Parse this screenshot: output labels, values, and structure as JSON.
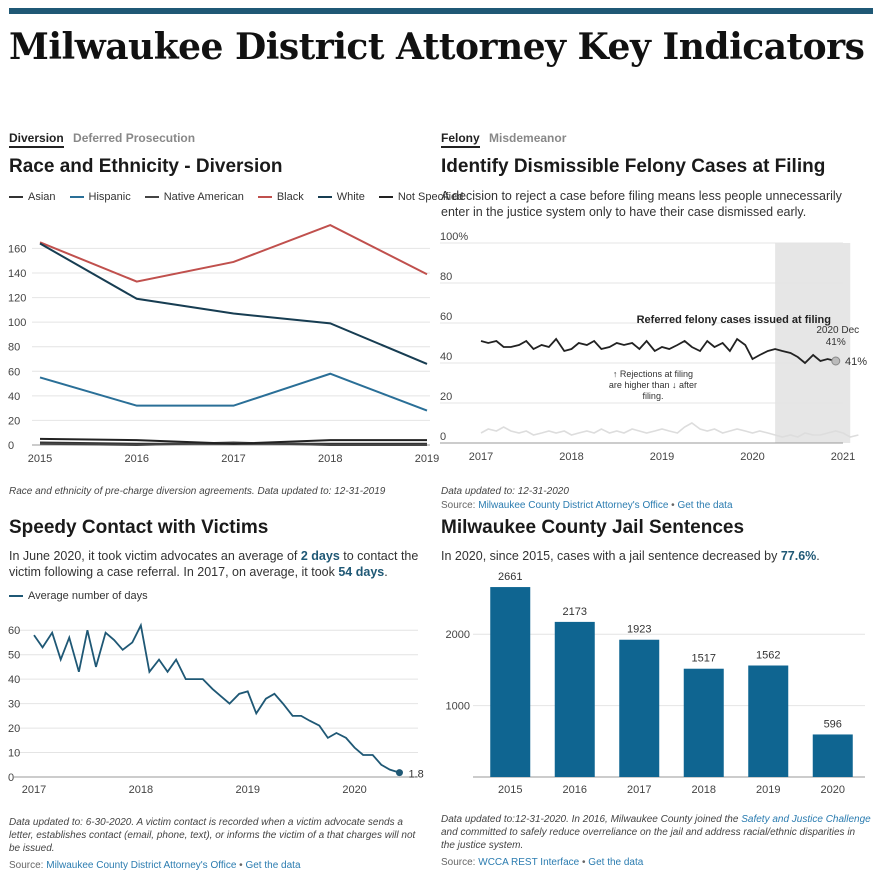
{
  "page": {
    "title": "Milwaukee District Attorney Key Indicators"
  },
  "diversion": {
    "tabs": [
      "Diversion",
      "Deferred Prosecution"
    ],
    "title": "Race and Ethnicity - Diversion",
    "note": "Race and ethnicity of pre-charge diversion agreements. Data updated to: 12-31-2019"
  },
  "felony": {
    "tabs": [
      "Felony",
      "Misdemeanor"
    ],
    "title": "Identify Dismissible Felony Cases at Filing",
    "description": "A decision to reject a case before filing means less people unnecessarily enter in the justice system only to have their case dismissed early.",
    "note": "Data updated to: 12-31-2020",
    "source_label": "Source:",
    "source_link": "Milwaukee County District Attorney's Office",
    "sep": "•",
    "get_data": "Get the data"
  },
  "contact": {
    "title": "Speedy Contact with Victims",
    "desc_1": "In June 2020, it took victim advocates an average of",
    "desc_b1": "2 days",
    "desc_2": "to contact the victim following a case referral. In 2017, on average, it took",
    "desc_b2": "54 days",
    "desc_3": ".",
    "note": "Data updated to: 6-30-2020. A victim contact is recorded when a victim advocate sends a letter, establishes contact (email, phone, text), or informs the victim of a that charges will not be issued.",
    "source_label": "Source:",
    "source_link": "Milwaukee County District Attorney's Office",
    "sep": "•",
    "get_data": "Get the data"
  },
  "jail": {
    "title": "Milwaukee County Jail Sentences",
    "desc_1": "In 2020, since 2015, cases with a jail sentence decreased by",
    "desc_b1": "77.6%",
    "desc_2": ".",
    "note_1": "Data updated to:12-31-2020. In 2016, Milwaukee County joined the",
    "note_link": "Safety and Justice Challenge",
    "note_2": "and committed to safely reduce overreliance on the jail and address racial/ethnic disparities in the justice system.",
    "source_label": "Source:",
    "source_link": "WCCA REST Interface",
    "sep": "•",
    "get_data": "Get the data"
  },
  "colors": {
    "accent": "#1f5875",
    "black_series": "#c0504d",
    "hispanic": "#2a6f97",
    "bar": "#0f6591"
  },
  "chart_data": [
    {
      "type": "line",
      "title": "Race and Ethnicity - Diversion",
      "x": [
        2015,
        2016,
        2017,
        2018,
        2019
      ],
      "xticks": [
        "2015",
        "2016",
        "2017",
        "2018",
        "2019"
      ],
      "ylim": [
        0,
        175
      ],
      "yticks": [
        0,
        20,
        40,
        60,
        80,
        100,
        120,
        140,
        160
      ],
      "grid": true,
      "legend": "top",
      "series": [
        {
          "name": "Asian",
          "color": "#333333",
          "values": [
            2,
            1,
            1,
            1,
            1
          ]
        },
        {
          "name": "Hispanic",
          "color": "#2a6f97",
          "values": [
            55,
            32,
            32,
            58,
            28
          ]
        },
        {
          "name": "Native American",
          "color": "#444444",
          "values": [
            1,
            0,
            2,
            0,
            0
          ]
        },
        {
          "name": "Black",
          "color": "#c0504d",
          "values": [
            165,
            133,
            149,
            179,
            139
          ]
        },
        {
          "name": "White",
          "color": "#173d52",
          "values": [
            164,
            119,
            107,
            99,
            66
          ]
        },
        {
          "name": "Not Specified",
          "color": "#222222",
          "values": [
            5,
            4,
            1,
            4,
            4
          ]
        }
      ]
    },
    {
      "type": "line",
      "title": "Identify Dismissible Felony Cases at Filing",
      "xticks": [
        "2017",
        "2018",
        "2019",
        "2020",
        "2021"
      ],
      "ylim": [
        0,
        100
      ],
      "yticks": [
        "0",
        "20",
        "40",
        "60",
        "80",
        "100%"
      ],
      "grid": true,
      "highlight": {
        "from": 2020.25,
        "to": 2021.08
      },
      "series": [
        {
          "name": "Referred felony cases issued at filing",
          "color": "#222222",
          "x": [
            2017.0,
            2017.08,
            2017.17,
            2017.25,
            2017.33,
            2017.42,
            2017.5,
            2017.58,
            2017.67,
            2017.75,
            2017.83,
            2017.92,
            2018.0,
            2018.08,
            2018.17,
            2018.25,
            2018.33,
            2018.42,
            2018.5,
            2018.58,
            2018.67,
            2018.75,
            2018.83,
            2018.92,
            2019.0,
            2019.08,
            2019.17,
            2019.25,
            2019.33,
            2019.42,
            2019.5,
            2019.58,
            2019.67,
            2019.75,
            2019.83,
            2019.92,
            2020.0,
            2020.08,
            2020.17,
            2020.25,
            2020.33,
            2020.42,
            2020.5,
            2020.58,
            2020.67,
            2020.75,
            2020.83,
            2020.92
          ],
          "values": [
            51,
            50,
            51,
            48,
            48,
            49,
            51,
            47,
            49,
            48,
            52,
            46,
            47,
            50,
            49,
            51,
            47,
            48,
            50,
            49,
            50,
            47,
            51,
            46,
            48,
            47,
            49,
            51,
            48,
            46,
            51,
            48,
            50,
            46,
            52,
            49,
            42,
            44,
            46,
            47,
            46,
            45,
            43,
            40,
            44,
            41,
            42,
            41
          ]
        },
        {
          "name": "Rejections at filing",
          "color": "#dddddd",
          "x": [
            2017.0,
            2017.08,
            2017.17,
            2017.25,
            2017.33,
            2017.42,
            2017.5,
            2017.58,
            2017.67,
            2017.75,
            2017.83,
            2017.92,
            2018.0,
            2018.08,
            2018.17,
            2018.25,
            2018.33,
            2018.42,
            2018.5,
            2018.58,
            2018.67,
            2018.75,
            2018.83,
            2018.92,
            2019.0,
            2019.08,
            2019.17,
            2019.25,
            2019.33,
            2019.42,
            2019.5,
            2019.58,
            2019.67,
            2019.75,
            2019.83,
            2019.92,
            2020.0,
            2020.08,
            2020.17,
            2020.25,
            2020.33,
            2020.42,
            2020.5,
            2020.58,
            2020.67,
            2020.75,
            2020.83,
            2020.92,
            2021.0,
            2021.08,
            2021.17
          ],
          "values": [
            5,
            7,
            6,
            8,
            6,
            5,
            6,
            4,
            5,
            6,
            5,
            6,
            4,
            5,
            6,
            5,
            7,
            5,
            6,
            5,
            7,
            6,
            5,
            6,
            7,
            6,
            5,
            8,
            10,
            7,
            6,
            7,
            5,
            6,
            7,
            6,
            5,
            6,
            5,
            4,
            3,
            4,
            3,
            5,
            4,
            4,
            5,
            6,
            5,
            3,
            4
          ]
        }
      ],
      "annotations": {
        "series_label": "Referred felony cases issued at filing",
        "callout_date": "2020 Dec",
        "callout_value": "41%",
        "end_label": "41%",
        "rejection_note": [
          "↑ Rejections at filing",
          "are higher than ↓ after",
          "filing."
        ]
      }
    },
    {
      "type": "line",
      "title": "Speedy Contact with Victims",
      "xticks": [
        "2017",
        "2018",
        "2019",
        "2020"
      ],
      "ylim": [
        0,
        65
      ],
      "yticks": [
        0,
        10,
        20,
        30,
        40,
        50,
        60
      ],
      "grid": true,
      "legend": "top-left",
      "series": [
        {
          "name": "Average number of days",
          "color": "#1f5875",
          "x": [
            2017.0,
            2017.08,
            2017.17,
            2017.25,
            2017.33,
            2017.42,
            2017.5,
            2017.58,
            2017.67,
            2017.75,
            2017.83,
            2017.92,
            2018.0,
            2018.08,
            2018.17,
            2018.25,
            2018.33,
            2018.42,
            2018.5,
            2018.58,
            2018.67,
            2018.75,
            2018.83,
            2018.92,
            2019.0,
            2019.08,
            2019.17,
            2019.25,
            2019.33,
            2019.42,
            2019.5,
            2019.58,
            2019.67,
            2019.75,
            2019.83,
            2019.92,
            2020.0,
            2020.08,
            2020.17,
            2020.25,
            2020.33,
            2020.42
          ],
          "values": [
            58,
            53,
            59,
            48,
            57,
            43,
            60,
            45,
            59,
            56,
            52,
            55,
            62,
            43,
            48,
            43,
            48,
            40,
            40,
            40,
            36,
            33,
            30,
            34,
            35,
            26,
            32,
            34,
            30,
            25,
            25,
            23,
            21,
            16,
            18,
            16,
            12,
            9,
            9,
            5,
            3,
            1.8
          ]
        }
      ],
      "end_label": "1.8"
    },
    {
      "type": "bar",
      "title": "Milwaukee County Jail Sentences",
      "categories": [
        "2015",
        "2016",
        "2017",
        "2018",
        "2019",
        "2020"
      ],
      "values": [
        2661,
        2173,
        1923,
        1517,
        1562,
        596
      ],
      "value_labels": [
        "2661",
        "2173",
        "1923",
        "1517",
        "1562",
        "596"
      ],
      "ylim": [
        0,
        2900
      ],
      "yticks": [
        1000,
        2000
      ],
      "grid": true
    }
  ]
}
